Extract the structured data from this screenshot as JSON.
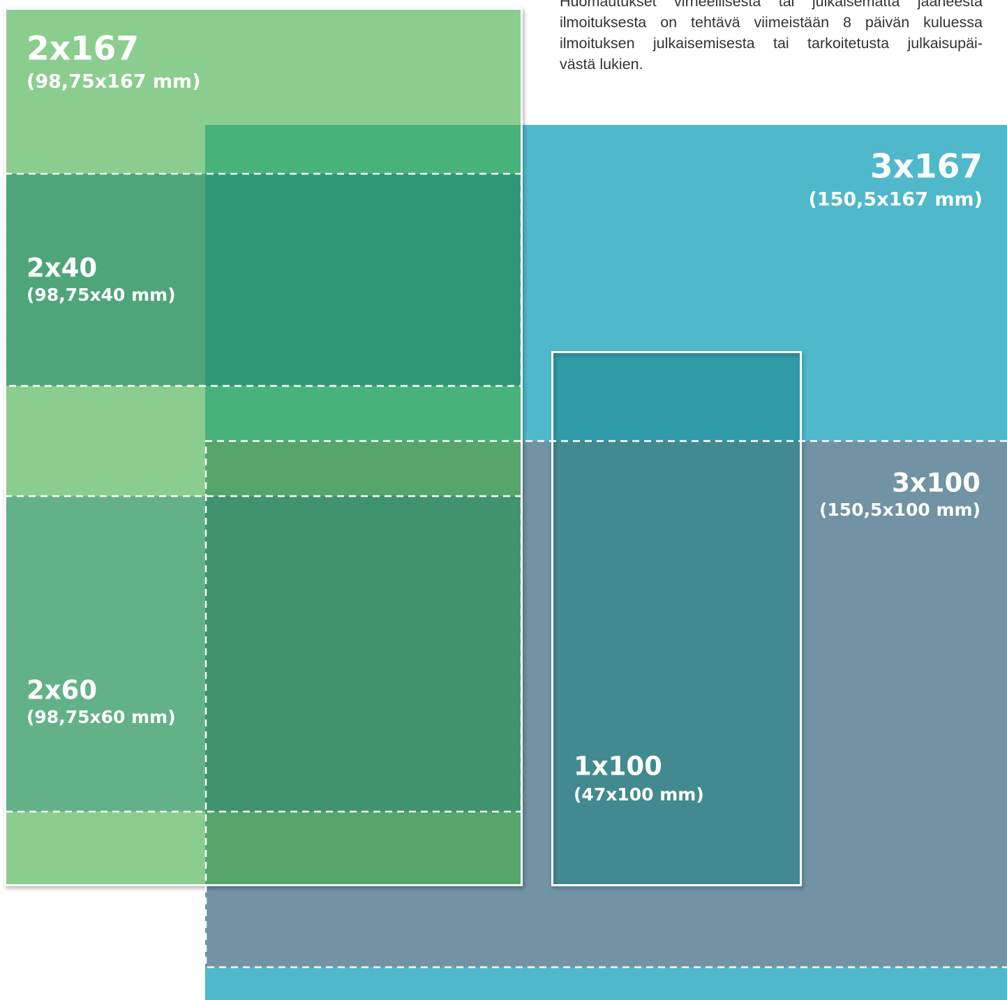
{
  "intro": {
    "lines": [
      "Huomautukset virheellisestä tai julkaisematta jääneestä",
      "ilmoituksesta on tehtävä viimeistään 8 päivän kuluessa",
      "ilmoituksen julkaisemisesta tai tarkoitetusta julkaisupäi-",
      "västä lukien."
    ]
  },
  "sizes": [
    {
      "name": "2x167",
      "dims": "(98,75x167 mm)"
    },
    {
      "name": "3x167",
      "dims": "(150,5x167 mm)"
    },
    {
      "name": "2x40",
      "dims": "(98,75x40 mm)"
    },
    {
      "name": "3x100",
      "dims": "(150,5x100 mm)"
    },
    {
      "name": "2x60",
      "dims": "(98,75x60 mm)"
    },
    {
      "name": "1x100",
      "dims": "(47x100 mm)"
    }
  ]
}
